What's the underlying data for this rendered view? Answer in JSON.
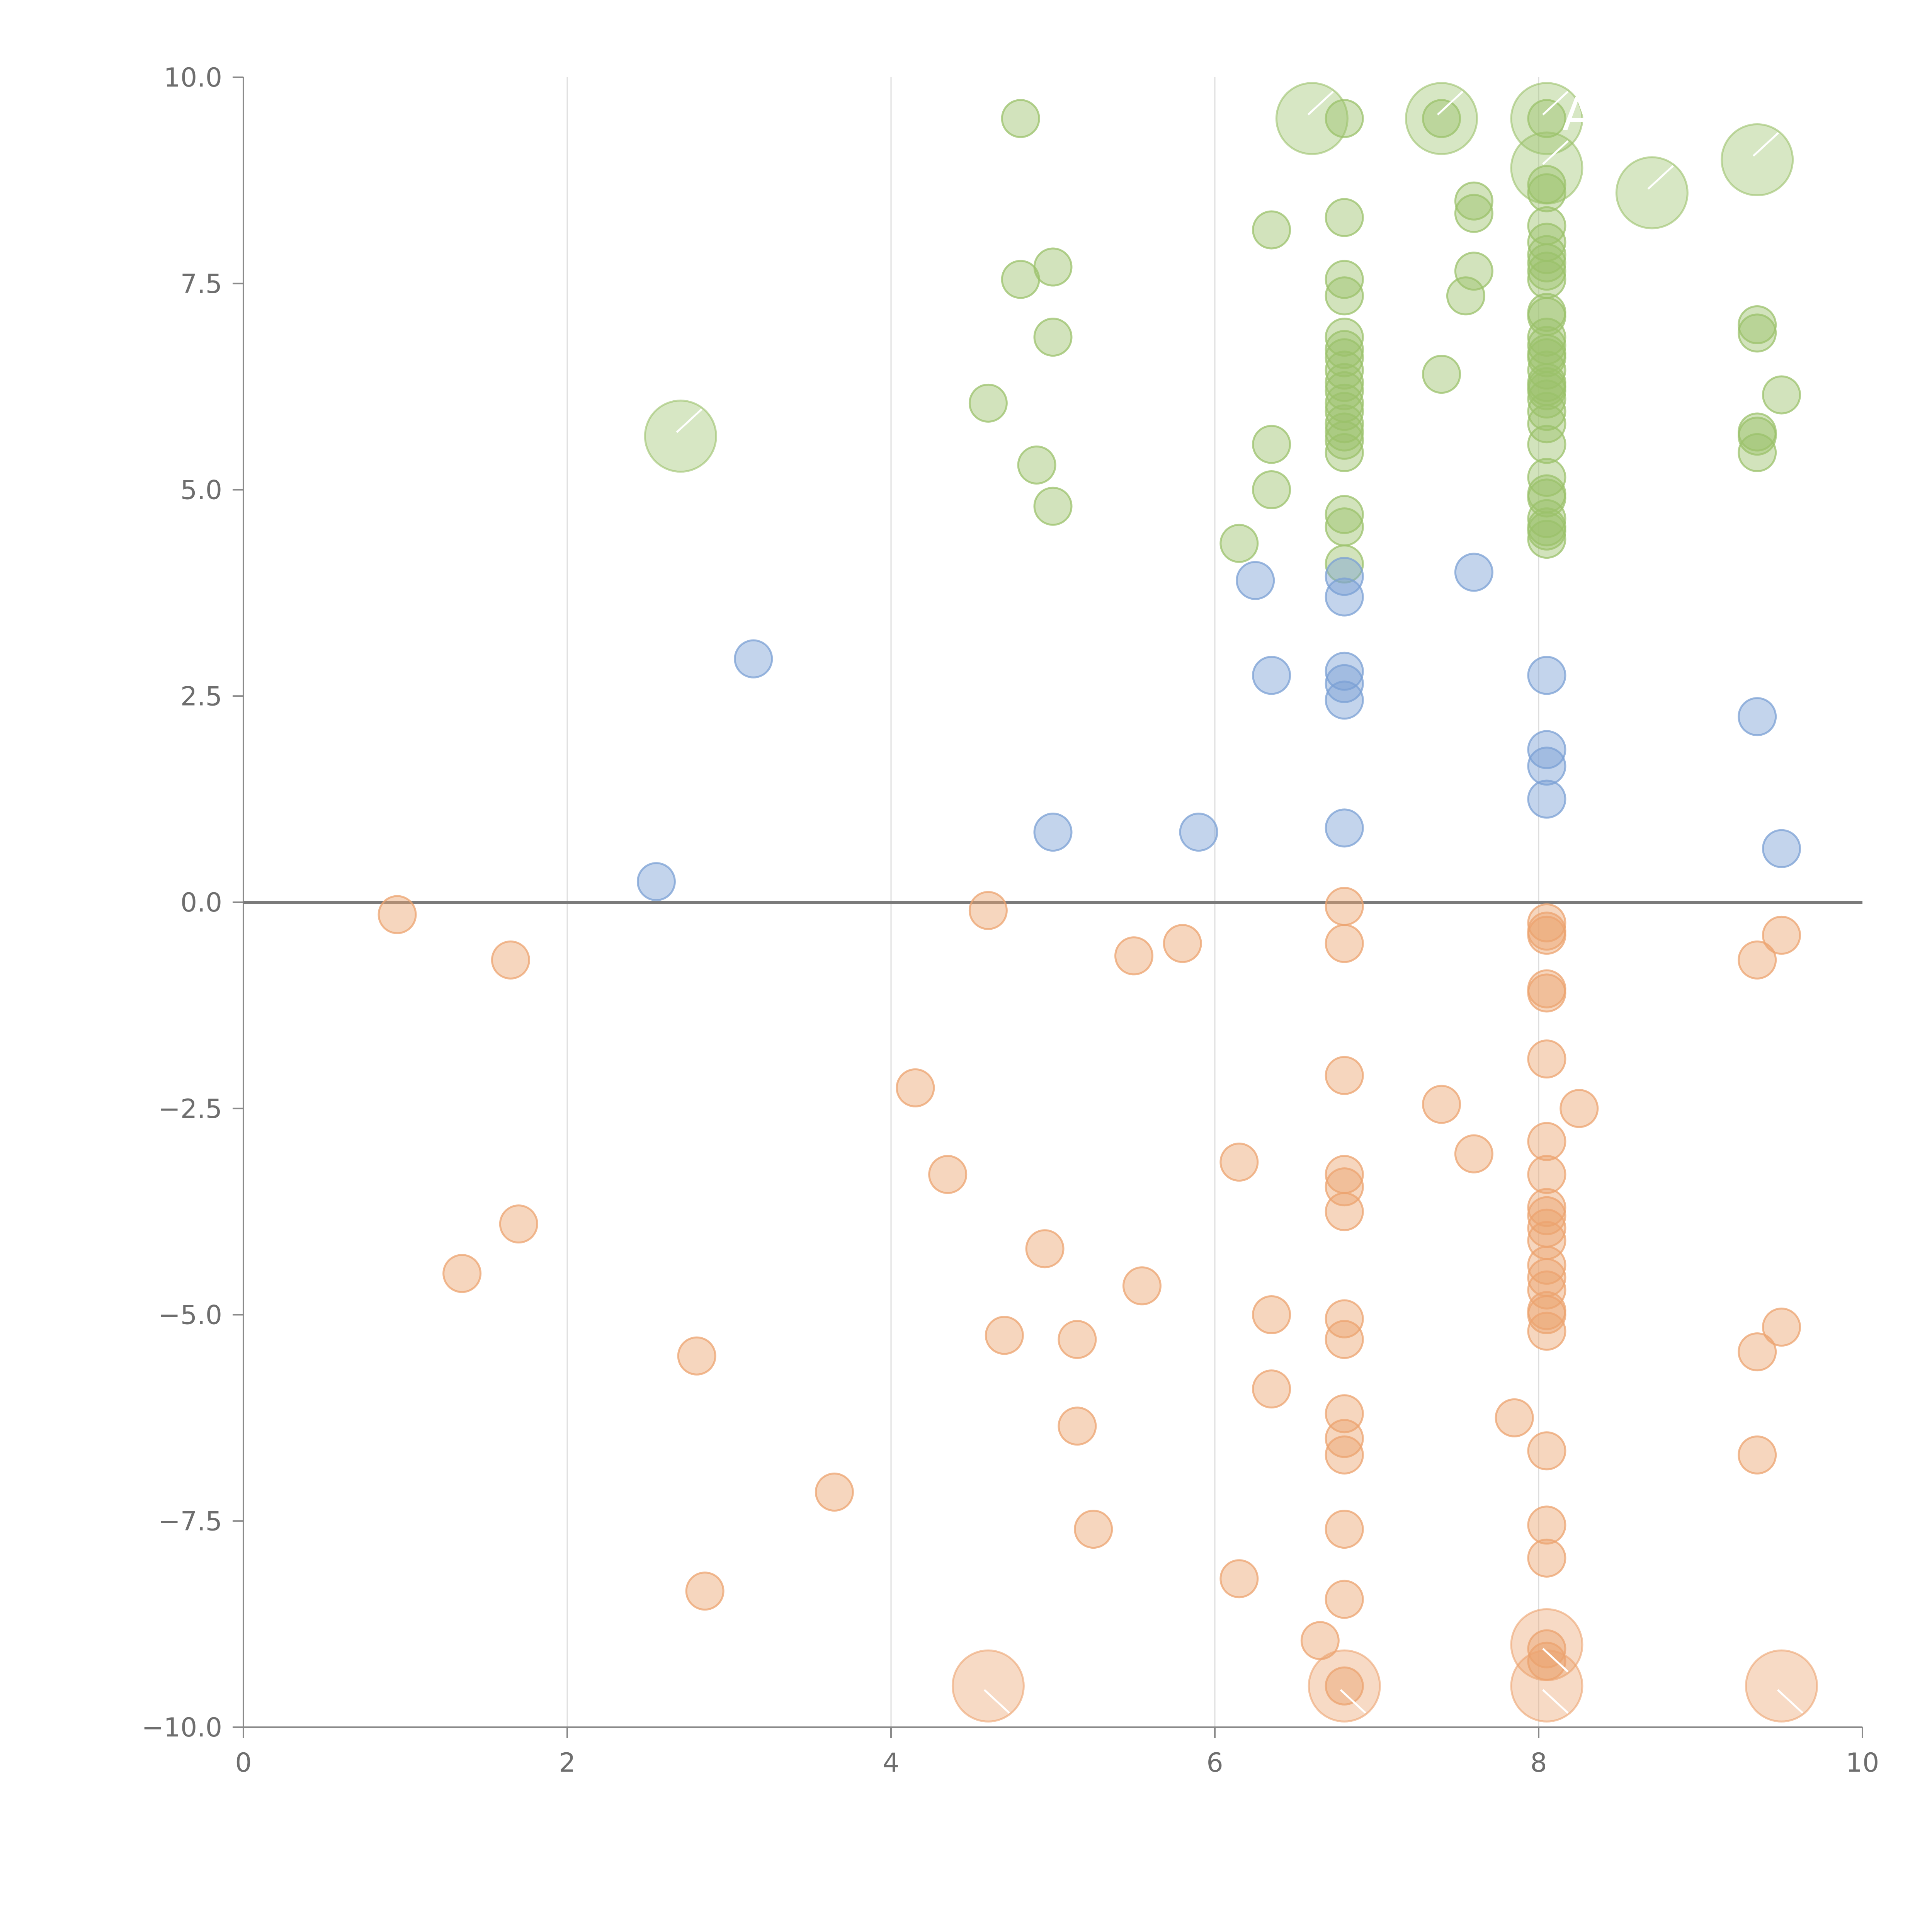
{
  "chart_data": {
    "type": "scatter",
    "title": "",
    "xlabel": "",
    "ylabel": "",
    "xlim": [
      0,
      10
    ],
    "ylim": [
      -10,
      10
    ],
    "x_ticks": [
      "0",
      "2",
      "4",
      "6",
      "8",
      "10"
    ],
    "y_ticks": [
      "10.0",
      "7.5",
      "5.0",
      "2.5",
      "0.0",
      "−2.5",
      "−5.0",
      "−7.5",
      "−10.0"
    ],
    "x_tick_values": [
      0,
      2,
      4,
      6,
      8,
      10
    ],
    "y_tick_values": [
      10,
      7.5,
      5,
      2.5,
      0,
      -2.5,
      -5,
      -7.5,
      -10
    ],
    "grid": "vertical",
    "zero_line": true,
    "colors": {
      "positive": "#9bc26b",
      "middle": "#7ba0d4",
      "negative": "#eca36f"
    },
    "series": [
      {
        "color_key": "positive",
        "points": [
          [
            4.8,
            9.5
          ],
          [
            6.8,
            9.5
          ],
          [
            7.4,
            9.5
          ],
          [
            8.05,
            9.5
          ],
          [
            8.05,
            8.7
          ],
          [
            8.05,
            8.6
          ],
          [
            7.6,
            8.5
          ],
          [
            7.6,
            8.35
          ],
          [
            6.8,
            8.3
          ],
          [
            6.35,
            8.15
          ],
          [
            8.05,
            8.2
          ],
          [
            8.05,
            8.0
          ],
          [
            8.05,
            7.85
          ],
          [
            8.05,
            7.75
          ],
          [
            8.05,
            7.65
          ],
          [
            8.05,
            7.55
          ],
          [
            5.0,
            7.7
          ],
          [
            4.8,
            7.55
          ],
          [
            6.8,
            7.55
          ],
          [
            6.8,
            7.35
          ],
          [
            7.6,
            7.65
          ],
          [
            7.55,
            7.35
          ],
          [
            9.35,
            7.0
          ],
          [
            9.35,
            6.9
          ],
          [
            8.05,
            7.15
          ],
          [
            8.05,
            7.1
          ],
          [
            6.8,
            6.85
          ],
          [
            5.0,
            6.85
          ],
          [
            6.8,
            6.7
          ],
          [
            8.05,
            6.85
          ],
          [
            8.05,
            6.75
          ],
          [
            8.05,
            6.65
          ],
          [
            8.05,
            6.6
          ],
          [
            6.8,
            6.6
          ],
          [
            6.8,
            6.45
          ],
          [
            6.8,
            6.3
          ],
          [
            6.8,
            6.2
          ],
          [
            8.05,
            6.45
          ],
          [
            8.05,
            6.3
          ],
          [
            8.05,
            6.25
          ],
          [
            8.05,
            6.2
          ],
          [
            8.05,
            6.1
          ],
          [
            7.4,
            6.4
          ],
          [
            4.6,
            6.05
          ],
          [
            9.5,
            6.15
          ],
          [
            6.8,
            6.05
          ],
          [
            6.8,
            5.95
          ],
          [
            8.05,
            5.95
          ],
          [
            6.8,
            5.8
          ],
          [
            6.8,
            5.7
          ],
          [
            6.8,
            5.6
          ],
          [
            8.05,
            5.8
          ],
          [
            9.35,
            5.7
          ],
          [
            9.35,
            5.65
          ],
          [
            6.35,
            5.55
          ],
          [
            8.05,
            5.55
          ],
          [
            6.8,
            5.45
          ],
          [
            9.35,
            5.45
          ],
          [
            4.9,
            5.3
          ],
          [
            8.05,
            5.15
          ],
          [
            6.35,
            5.0
          ],
          [
            8.05,
            4.95
          ],
          [
            8.05,
            4.9
          ],
          [
            5.0,
            4.8
          ],
          [
            6.8,
            4.7
          ],
          [
            6.8,
            4.55
          ],
          [
            8.05,
            4.65
          ],
          [
            8.05,
            4.55
          ],
          [
            8.05,
            4.5
          ],
          [
            8.05,
            4.4
          ],
          [
            6.15,
            4.35
          ],
          [
            6.8,
            4.1
          ]
        ],
        "highlighted": [
          {
            "x": 6.6,
            "y": 9.5,
            "label": ""
          },
          {
            "x": 7.4,
            "y": 9.5,
            "label": ""
          },
          {
            "x": 8.05,
            "y": 9.5,
            "label": "A"
          },
          {
            "x": 8.05,
            "y": 8.9,
            "label": ""
          },
          {
            "x": 8.7,
            "y": 8.6,
            "label": ""
          },
          {
            "x": 9.35,
            "y": 9.0,
            "label": ""
          },
          {
            "x": 2.7,
            "y": 5.65,
            "label": ""
          }
        ]
      },
      {
        "color_key": "middle",
        "points": [
          [
            6.25,
            3.9
          ],
          [
            6.8,
            3.95
          ],
          [
            7.6,
            4.0
          ],
          [
            6.8,
            3.7
          ],
          [
            3.15,
            2.95
          ],
          [
            6.35,
            2.75
          ],
          [
            6.8,
            2.8
          ],
          [
            6.8,
            2.65
          ],
          [
            6.8,
            2.45
          ],
          [
            8.05,
            2.75
          ],
          [
            9.35,
            2.25
          ],
          [
            8.05,
            1.85
          ],
          [
            8.05,
            1.65
          ],
          [
            8.05,
            1.25
          ],
          [
            5.0,
            0.85
          ],
          [
            5.9,
            0.85
          ],
          [
            6.8,
            0.9
          ],
          [
            9.5,
            0.65
          ],
          [
            2.55,
            0.25
          ]
        ],
        "highlighted": []
      },
      {
        "color_key": "negative",
        "points": [
          [
            0.95,
            -0.15
          ],
          [
            4.6,
            -0.1
          ],
          [
            6.8,
            -0.05
          ],
          [
            8.05,
            -0.25
          ],
          [
            8.05,
            -0.35
          ],
          [
            8.05,
            -0.4
          ],
          [
            9.5,
            -0.4
          ],
          [
            5.8,
            -0.5
          ],
          [
            6.8,
            -0.5
          ],
          [
            5.5,
            -0.65
          ],
          [
            1.65,
            -0.7
          ],
          [
            9.35,
            -0.7
          ],
          [
            8.05,
            -1.05
          ],
          [
            8.05,
            -1.1
          ],
          [
            8.05,
            -1.9
          ],
          [
            6.8,
            -2.1
          ],
          [
            4.15,
            -2.25
          ],
          [
            7.4,
            -2.45
          ],
          [
            8.25,
            -2.5
          ],
          [
            8.05,
            -2.9
          ],
          [
            7.6,
            -3.05
          ],
          [
            6.15,
            -3.15
          ],
          [
            4.35,
            -3.3
          ],
          [
            6.8,
            -3.3
          ],
          [
            8.05,
            -3.3
          ],
          [
            6.8,
            -3.45
          ],
          [
            8.05,
            -3.7
          ],
          [
            8.05,
            -3.8
          ],
          [
            6.8,
            -3.75
          ],
          [
            1.7,
            -3.9
          ],
          [
            8.05,
            -3.95
          ],
          [
            8.05,
            -4.1
          ],
          [
            4.95,
            -4.2
          ],
          [
            8.05,
            -4.4
          ],
          [
            1.35,
            -4.5
          ],
          [
            8.05,
            -4.55
          ],
          [
            5.55,
            -4.65
          ],
          [
            8.05,
            -4.7
          ],
          [
            8.05,
            -4.95
          ],
          [
            6.35,
            -5.0
          ],
          [
            8.05,
            -5.0
          ],
          [
            6.8,
            -5.05
          ],
          [
            9.5,
            -5.15
          ],
          [
            8.05,
            -5.2
          ],
          [
            4.7,
            -5.25
          ],
          [
            5.15,
            -5.3
          ],
          [
            6.8,
            -5.3
          ],
          [
            9.35,
            -5.45
          ],
          [
            2.8,
            -5.5
          ],
          [
            6.35,
            -5.9
          ],
          [
            6.8,
            -6.2
          ],
          [
            7.85,
            -6.25
          ],
          [
            5.15,
            -6.35
          ],
          [
            6.8,
            -6.5
          ],
          [
            8.05,
            -6.65
          ],
          [
            6.8,
            -6.7
          ],
          [
            9.35,
            -6.7
          ],
          [
            3.65,
            -7.15
          ],
          [
            8.05,
            -7.55
          ],
          [
            5.25,
            -7.6
          ],
          [
            6.8,
            -7.6
          ],
          [
            8.05,
            -7.95
          ],
          [
            6.15,
            -8.2
          ],
          [
            2.85,
            -8.35
          ],
          [
            6.8,
            -8.45
          ],
          [
            6.65,
            -8.95
          ],
          [
            8.05,
            -9.05
          ],
          [
            8.05,
            -9.2
          ],
          [
            6.8,
            -9.5
          ]
        ],
        "highlighted": [
          {
            "x": 4.6,
            "y": -9.5,
            "label": ""
          },
          {
            "x": 6.8,
            "y": -9.5,
            "label": ""
          },
          {
            "x": 8.05,
            "y": -9.0,
            "label": ""
          },
          {
            "x": 8.05,
            "y": -9.5,
            "label": ""
          },
          {
            "x": 9.5,
            "y": -9.5,
            "label": ""
          }
        ]
      }
    ]
  }
}
